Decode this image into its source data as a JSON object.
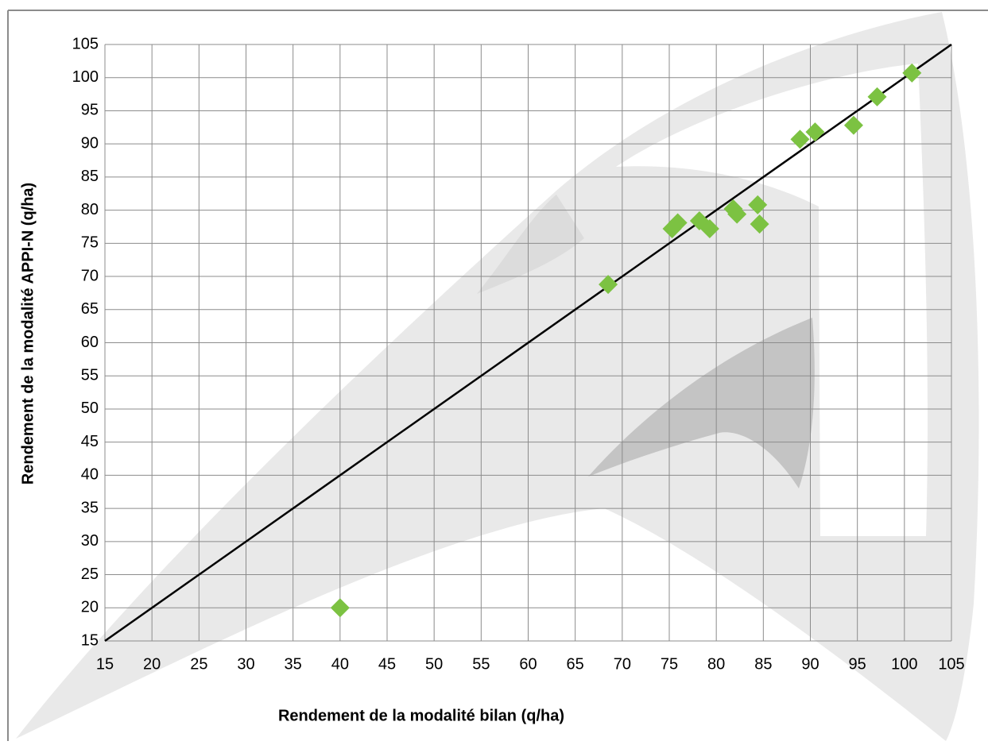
{
  "chart_data": {
    "type": "scatter",
    "x_label": "Rendement de la modalité bilan (q/ha)",
    "y_label": "Rendement de la modalité APPI-N (q/ha)",
    "xlim": [
      15,
      105
    ],
    "ylim": [
      15,
      105
    ],
    "xticks": [
      15,
      20,
      25,
      30,
      35,
      40,
      45,
      50,
      55,
      60,
      65,
      70,
      75,
      80,
      85,
      90,
      95,
      100,
      105
    ],
    "yticks": [
      15,
      20,
      25,
      30,
      35,
      40,
      45,
      50,
      55,
      60,
      65,
      70,
      75,
      80,
      85,
      90,
      95,
      100,
      105
    ],
    "grid": true,
    "series": [
      {
        "color": "#7cc242",
        "x": [
          40,
          68.5,
          75.3,
          75.9,
          78.2,
          79.3,
          81.8,
          82.2,
          84.4,
          84.6,
          88.9,
          90.5,
          94.6,
          97.1,
          100.8
        ],
        "values": [
          20,
          68.8,
          77.2,
          78.1,
          78.4,
          77.2,
          80.2,
          79.4,
          80.8,
          77.9,
          90.7,
          91.8,
          92.8,
          97.1,
          100.7
        ]
      }
    ],
    "lines": [
      {
        "color": "#000000",
        "x": [
          15,
          105
        ],
        "values": [
          15,
          105
        ]
      }
    ]
  }
}
